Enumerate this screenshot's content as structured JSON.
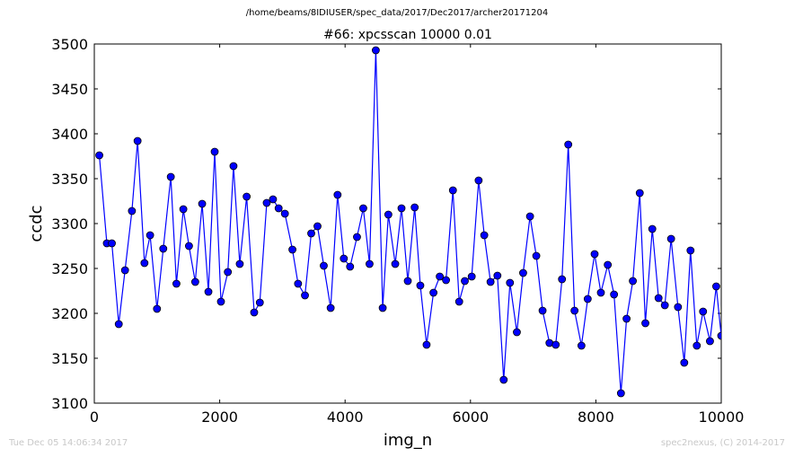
{
  "header": {
    "file_path": "/home/beams/8IDIUSER/spec_data/2017/Dec2017/archer20171204"
  },
  "footer": {
    "timestamp": "Tue Dec 05 14:06:34 2017",
    "credit": "spec2nexus, (C) 2014-2017"
  },
  "chart_data": {
    "type": "line",
    "title": "#66: xpcsscan 10000 0.01",
    "xlabel": "img_n",
    "ylabel": "ccdc",
    "xlim": [
      0,
      10000
    ],
    "ylim": [
      3100,
      3500
    ],
    "xticks": [
      0,
      2000,
      4000,
      6000,
      8000,
      10000
    ],
    "yticks": [
      3100,
      3150,
      3200,
      3250,
      3300,
      3350,
      3400,
      3450,
      3500
    ],
    "grid": false,
    "color": "#0000ff",
    "marker": "circle",
    "series": [
      {
        "x": [
          80,
          200,
          280,
          390,
          490,
          600,
          690,
          800,
          890,
          1000,
          1100,
          1220,
          1310,
          1420,
          1510,
          1610,
          1720,
          1820,
          1920,
          2020,
          2130,
          2220,
          2320,
          2430,
          2550,
          2640,
          2750,
          2850,
          2940,
          3040,
          3160,
          3250,
          3360,
          3460,
          3560,
          3660,
          3770,
          3880,
          3980,
          4080,
          4190,
          4290,
          4390,
          4490,
          4600,
          4690,
          4800,
          4900,
          5000,
          5110,
          5200,
          5300,
          5410,
          5510,
          5610,
          5720,
          5820,
          5910,
          6020,
          6130,
          6220,
          6320,
          6430,
          6530,
          6630,
          6740,
          6840,
          6950,
          7050,
          7150,
          7260,
          7360,
          7460,
          7560,
          7660,
          7770,
          7870,
          7980,
          8080,
          8190,
          8290,
          8400,
          8490,
          8590,
          8700,
          8790,
          8900,
          9000,
          9100,
          9200,
          9310,
          9410,
          9510,
          9610,
          9710,
          9820,
          9920,
          10000
        ],
        "y": [
          3376,
          3278,
          3278,
          3188,
          3248,
          3314,
          3392,
          3256,
          3287,
          3205,
          3272,
          3352,
          3233,
          3316,
          3275,
          3235,
          3322,
          3224,
          3380,
          3213,
          3246,
          3364,
          3255,
          3330,
          3201,
          3212,
          3323,
          3327,
          3317,
          3311,
          3271,
          3233,
          3220,
          3289,
          3297,
          3253,
          3206,
          3332,
          3261,
          3252,
          3285,
          3317,
          3255,
          3493,
          3206,
          3310,
          3255,
          3317,
          3236,
          3318,
          3231,
          3165,
          3223,
          3241,
          3237,
          3337,
          3213,
          3236,
          3241,
          3348,
          3287,
          3235,
          3242,
          3126,
          3234,
          3179,
          3245,
          3308,
          3264,
          3203,
          3167,
          3165,
          3238,
          3388,
          3203,
          3164,
          3216,
          3266,
          3223,
          3254,
          3221,
          3111,
          3194,
          3236,
          3334,
          3189,
          3294,
          3217,
          3209,
          3283,
          3207,
          3145,
          3270,
          3164,
          3202,
          3169,
          3230,
          3175
        ]
      }
    ]
  }
}
